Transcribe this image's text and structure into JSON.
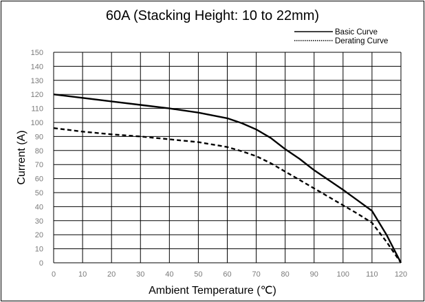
{
  "chart_data": {
    "type": "line",
    "title": "60A (Stacking Height: 10 to 22mm)",
    "xlabel": "Ambient Temperature (℃)",
    "ylabel": "Current (A)",
    "xlim": [
      0,
      120
    ],
    "ylim": [
      0,
      150
    ],
    "x_ticks": [
      0,
      10,
      20,
      30,
      40,
      50,
      60,
      70,
      80,
      90,
      100,
      110,
      120
    ],
    "x_tick_labels": [
      "0",
      "10",
      "20",
      "30",
      "40",
      "50",
      "60",
      "70",
      "80",
      "90",
      "100",
      "110",
      "120"
    ],
    "y_ticks": [
      0,
      10,
      20,
      30,
      40,
      50,
      60,
      70,
      80,
      90,
      100,
      110,
      120,
      130,
      140,
      150
    ],
    "grid": true,
    "legend_position": "top-right",
    "series": [
      {
        "name": "Basic Curve",
        "line_style": "solid",
        "color": "#000000",
        "x": [
          0,
          10,
          20,
          30,
          40,
          50,
          60,
          65,
          70,
          75,
          80,
          85,
          90,
          95,
          100,
          105,
          110,
          115,
          120
        ],
        "y": [
          120,
          117.5,
          115,
          112.5,
          110,
          107,
          103,
          99.5,
          95,
          89,
          81,
          74,
          66,
          59,
          52,
          44.5,
          37,
          20,
          0
        ]
      },
      {
        "name": "Derating Curve",
        "line_style": "dashed",
        "color": "#000000",
        "x": [
          0,
          10,
          20,
          30,
          40,
          50,
          60,
          65,
          70,
          75,
          80,
          85,
          90,
          95,
          100,
          105,
          110,
          115,
          120
        ],
        "y": [
          96,
          93.5,
          91.5,
          90,
          88,
          86,
          82.5,
          79.5,
          76,
          71,
          65,
          59,
          53,
          47,
          41,
          35,
          28.5,
          15,
          0
        ]
      }
    ]
  }
}
